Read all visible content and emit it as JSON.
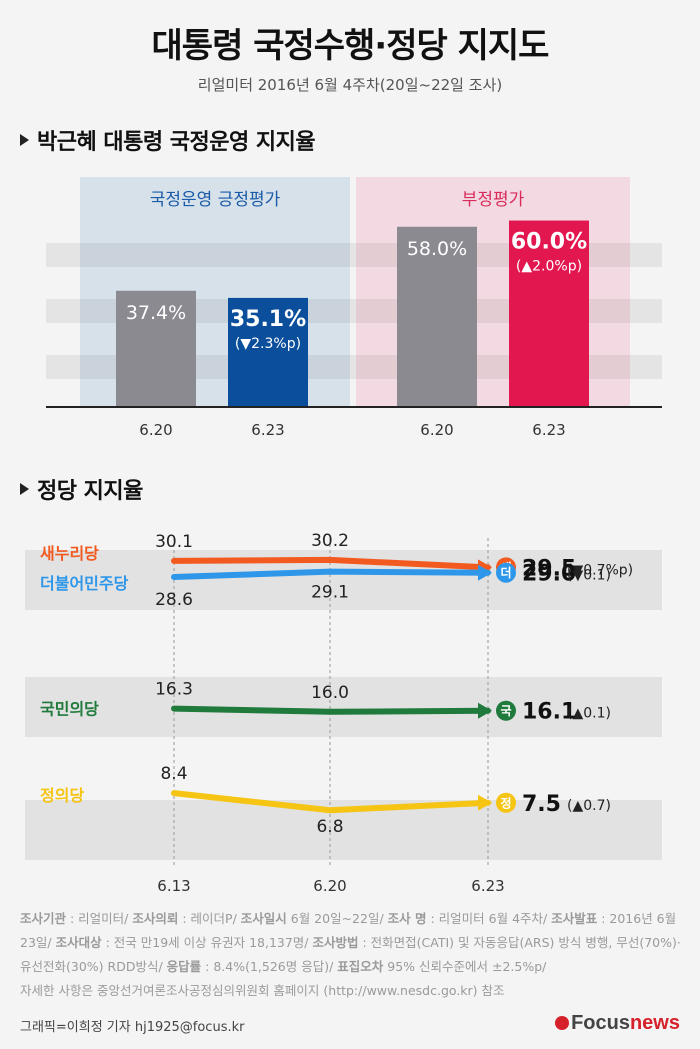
{
  "header": {
    "title": "대통령 국정수행·정당 지지도",
    "subtitle": "리얼미터 2016년 6월 4주차(20일~22일 조사)"
  },
  "section1": {
    "title": "박근혜 대통령 국정운영 지지율"
  },
  "section2": {
    "title": "정당 지지율"
  },
  "chart_data": [
    {
      "type": "bar",
      "title": "박근혜 대통령 국정운영 지지율",
      "groups": [
        {
          "name": "국정운영 긍정평가",
          "categories": [
            "6.20",
            "6.23"
          ],
          "values": [
            37.4,
            35.1
          ],
          "labels": [
            "37.4%",
            "35.1%"
          ],
          "change": "(▼2.3%p)",
          "colors": [
            "#8a8a90",
            "#0b4f9c"
          ],
          "panel_color": "#d6e1ea",
          "title_color": "#1a5aa8"
        },
        {
          "name": "부정평가",
          "categories": [
            "6.20",
            "6.23"
          ],
          "values": [
            58.0,
            60.0
          ],
          "labels": [
            "58.0%",
            "60.0%"
          ],
          "change": "(▲2.0%p)",
          "colors": [
            "#8a8a90",
            "#e3174f"
          ],
          "panel_color": "#f3d9e1",
          "title_color": "#d92c5b"
        }
      ],
      "ylim": [
        0,
        65
      ]
    },
    {
      "type": "line",
      "title": "정당 지지율",
      "x": [
        "6.13",
        "6.20",
        "6.23"
      ],
      "ylim": [
        0,
        35
      ],
      "series": [
        {
          "name": "새누리당",
          "values": [
            30.1,
            30.2,
            29.5
          ],
          "color": "#f25a1f",
          "badge": "새",
          "final_label": "29.5",
          "change": "(▼0.7%p)"
        },
        {
          "name": "더불어민주당",
          "values": [
            28.6,
            29.1,
            29.0
          ],
          "color": "#2e97ea",
          "badge": "더",
          "final_label": "29.0",
          "change": "(▼0.1)"
        },
        {
          "name": "국민의당",
          "values": [
            16.3,
            16.0,
            16.1
          ],
          "color": "#1f7a3c",
          "badge": "국",
          "final_label": "16.1",
          "change": "(▲0.1)"
        },
        {
          "name": "정의당",
          "values": [
            8.4,
            6.8,
            7.5
          ],
          "color": "#f6c413",
          "badge": "정",
          "final_label": "7.5",
          "change": "(▲0.7)"
        }
      ],
      "point_labels": [
        [
          "30.1",
          "30.2"
        ],
        [
          "28.6",
          "29.1"
        ],
        [
          "16.3",
          "16.0"
        ],
        [
          "8.4",
          "6.8"
        ]
      ]
    }
  ],
  "footnote": {
    "l1_k1": "조사기관",
    "l1_v1": " : 리얼미터/ ",
    "l1_k2": "조사의뢰",
    "l1_v2": " : 레이더P/ ",
    "l1_k3": "조사일시",
    "l1_v3": " 6월 20일~22일/ ",
    "l1_k4": "조사 명",
    "l1_v4": " : 리얼미터 6월 4주차/ ",
    "l1_k5": "조사발표",
    "l1_v5": " : 2016년 6월 23일/ ",
    "l2_k1": "조사대상",
    "l2_v1": " : 전국 만19세 이상 유권자 18,137명/ ",
    "l2_k2": "조사방법",
    "l2_v2": " : 전화면접(CATI) 및 자동응답(ARS) 방식 병행, 무선(70%)·유선전화(30%) RDD방식/ ",
    "l3_k1": "응답률",
    "l3_v1": " : 8.4%(1,526명 응답)/ ",
    "l3_k2": "표집오차",
    "l3_v2": " 95% 신뢰수준에서 ±2.5%p/",
    "l4": "자세한 사항은 중앙선거여론조사공정심의위원회 홈페이지 (http://www.nesdc.go.kr) 참조"
  },
  "credit": "그래픽=이희정 기자 hj1925@focus.kr",
  "logo": {
    "f": "F",
    "rest": "ocus",
    "news": "news"
  }
}
